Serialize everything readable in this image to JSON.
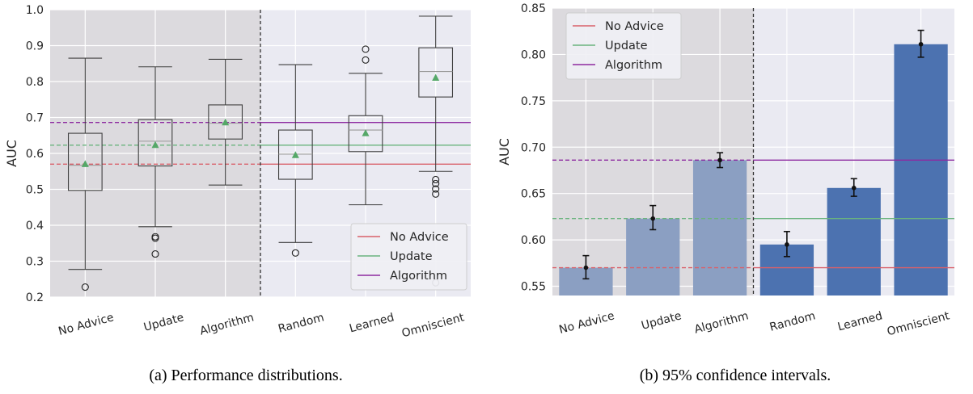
{
  "chart_data": [
    {
      "type": "box",
      "caption": "(a) Performance distributions.",
      "ylabel": "AUC",
      "ylim": [
        0.2,
        1.0
      ],
      "yticks": [
        "0.2",
        "0.3",
        "0.4",
        "0.5",
        "0.6",
        "0.7",
        "0.8",
        "0.9",
        "1.0"
      ],
      "categories": [
        "No Advice",
        "Update",
        "Algorithm",
        "Random",
        "Learned",
        "Omniscient"
      ],
      "boxes": [
        {
          "min": 0.277,
          "q1": 0.497,
          "median": 0.567,
          "q3": 0.656,
          "max": 0.865,
          "mean": 0.57,
          "outliers": [
            0.228
          ]
        },
        {
          "min": 0.396,
          "q1": 0.565,
          "median": 0.634,
          "q3": 0.694,
          "max": 0.841,
          "mean": 0.623,
          "outliers": [
            0.368,
            0.364,
            0.32
          ]
        },
        {
          "min": 0.512,
          "q1": 0.64,
          "median": 0.684,
          "q3": 0.735,
          "max": 0.862,
          "mean": 0.686,
          "outliers": []
        },
        {
          "min": 0.352,
          "q1": 0.528,
          "median": 0.598,
          "q3": 0.665,
          "max": 0.847,
          "mean": 0.595,
          "outliers": [
            0.323
          ]
        },
        {
          "min": 0.457,
          "q1": 0.605,
          "median": 0.665,
          "q3": 0.705,
          "max": 0.823,
          "mean": 0.656,
          "outliers": [
            0.89,
            0.86
          ]
        },
        {
          "min": 0.55,
          "q1": 0.757,
          "median": 0.828,
          "q3": 0.894,
          "max": 0.982,
          "mean": 0.81,
          "outliers": [
            0.527,
            0.516,
            0.501,
            0.487,
            0.24
          ]
        }
      ],
      "reference_lines": [
        {
          "name": "No Advice",
          "value": 0.57,
          "color": "#d9606a"
        },
        {
          "name": "Update",
          "value": 0.623,
          "color": "#6ab47e"
        },
        {
          "name": "Algorithm",
          "value": 0.686,
          "color": "#8d2aa0"
        }
      ],
      "shaded_categories": [
        "No Advice",
        "Update",
        "Algorithm"
      ],
      "legend": "bottom-right",
      "grid": true
    },
    {
      "type": "bar",
      "caption": "(b) 95% confidence intervals.",
      "ylabel": "AUC",
      "ylim": [
        0.54,
        0.85
      ],
      "yticks": [
        "0.55",
        "0.60",
        "0.65",
        "0.70",
        "0.75",
        "0.80",
        "0.85"
      ],
      "categories": [
        "No Advice",
        "Update",
        "Algorithm",
        "Random",
        "Learned",
        "Omniscient"
      ],
      "values": [
        0.57,
        0.623,
        0.686,
        0.595,
        0.656,
        0.811
      ],
      "ci_low": [
        0.558,
        0.611,
        0.678,
        0.582,
        0.647,
        0.797
      ],
      "ci_high": [
        0.583,
        0.637,
        0.694,
        0.609,
        0.666,
        0.826
      ],
      "reference_lines": [
        {
          "name": "No Advice",
          "value": 0.57,
          "color": "#d9606a"
        },
        {
          "name": "Update",
          "value": 0.623,
          "color": "#6ab47e"
        },
        {
          "name": "Algorithm",
          "value": 0.686,
          "color": "#8d2aa0"
        }
      ],
      "shaded_categories": [
        "No Advice",
        "Update",
        "Algorithm"
      ],
      "legend": "top-left",
      "grid": true
    }
  ],
  "colors": {
    "panel_bg": "#eaeaf2",
    "shade_bg": "#dcdade",
    "grid": "#ffffff",
    "bar_baseline": "#8b9fc2",
    "bar_new": "#4c72b0",
    "mean_marker": "#55a868",
    "box_line": "#3f3f3f",
    "divider": "#333333"
  }
}
